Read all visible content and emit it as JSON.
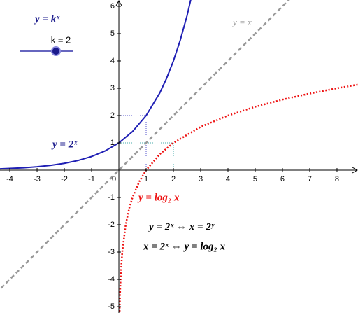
{
  "chart_data": {
    "type": "line",
    "xlim": [
      -4.36,
      8.77
    ],
    "ylim": [
      -5.23,
      6.23
    ],
    "xticks": [
      -4,
      -3,
      -2,
      -1,
      0,
      1,
      2,
      3,
      4,
      5,
      6,
      7,
      8
    ],
    "yticks": [
      -5,
      -4,
      -3,
      -2,
      -1,
      1,
      2,
      3,
      4,
      5,
      6
    ],
    "grid": false,
    "series": [
      {
        "name": "y = 2ˣ",
        "color": "#1f1fb4",
        "style": "solid",
        "x": [
          -4.5,
          -4,
          -3.5,
          -3,
          -2.5,
          -2,
          -1.5,
          -1,
          -0.5,
          0,
          0.5,
          1,
          1.5,
          1.75,
          2,
          2.25,
          2.5,
          2.75
        ],
        "values": [
          0.044,
          0.063,
          0.088,
          0.125,
          0.177,
          0.25,
          0.354,
          0.5,
          0.707,
          1,
          1.414,
          2,
          2.828,
          3.364,
          4,
          4.757,
          5.657,
          6.727
        ]
      },
      {
        "name": "y = x",
        "color": "#999999",
        "style": "dashed",
        "x": [
          -4.5,
          8.8
        ],
        "values": [
          -4.5,
          8.8
        ]
      },
      {
        "name": "y = log₂ x",
        "color": "#ee1111",
        "style": "dotted",
        "x": [
          0.02,
          0.03,
          0.05,
          0.08,
          0.125,
          0.25,
          0.375,
          0.5,
          0.75,
          1,
          1.5,
          2,
          3,
          4,
          5,
          6,
          7,
          8,
          8.8
        ],
        "values": [
          -5.64,
          -5.06,
          -4.32,
          -3.64,
          -3,
          -2,
          -1.415,
          -1,
          -0.415,
          0,
          0.585,
          1,
          1.585,
          2,
          2.322,
          2.585,
          2.807,
          3,
          3.138
        ]
      }
    ],
    "guides": [
      {
        "x": 1,
        "y": 2,
        "color": "#5555cc"
      },
      {
        "x": 2,
        "y": 1,
        "color": "#44aaaa"
      }
    ],
    "annotations": [
      {
        "text": "y = kˣ",
        "color": "#1f1f8f"
      },
      {
        "text": "y = x",
        "color": "#999999"
      },
      {
        "text": "y = 2ˣ",
        "color": "#1f1f8f"
      },
      {
        "text": "y = log₂ x",
        "color": "#ee1111"
      },
      {
        "text": "y = 2ˣ  ⇔  x = 2ʸ",
        "color": "#000000"
      },
      {
        "text": "x = 2ˣ  ⇔ y = log₂ x",
        "color": "#000000"
      }
    ],
    "slider": {
      "label": "k = 2",
      "value": 2
    }
  }
}
